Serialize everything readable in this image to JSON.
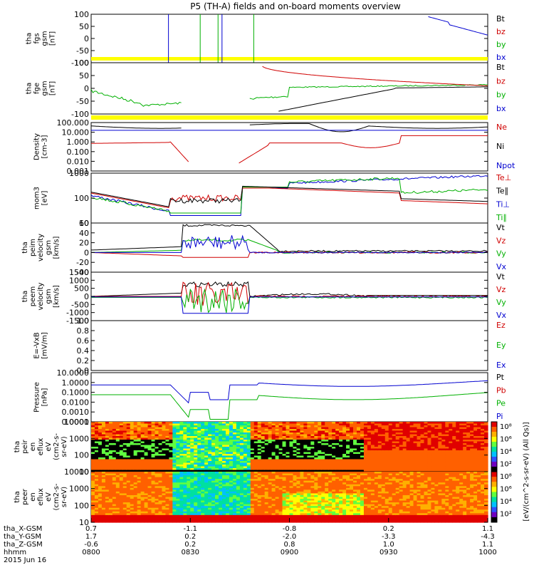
{
  "title": "P5 (TH-A) fields and on-board moments overview",
  "chart_data": [
    {
      "type": "line",
      "name": "tha_fgs_gsm",
      "ylabel": [
        "tha",
        "fgs",
        "gsm",
        "[nT]"
      ],
      "yticks": [
        "100",
        "50",
        "0",
        "-50",
        "-100"
      ],
      "ylim": [
        -100,
        100
      ],
      "legend": [
        {
          "label": "Bt",
          "color": "#000000"
        },
        {
          "label": "bz",
          "color": "#d00000"
        },
        {
          "label": "by",
          "color": "#00b000"
        },
        {
          "label": "bx",
          "color": "#0000d0"
        }
      ]
    },
    {
      "type": "line",
      "name": "tha_fge_gsm",
      "ylabel": [
        "tha",
        "fge",
        "gsm",
        "[nT]"
      ],
      "yticks": [
        "100",
        "50",
        "0",
        "-50",
        "-100"
      ],
      "ylim": [
        -120,
        100
      ],
      "legend": [
        {
          "label": "Bt",
          "color": "#000000"
        },
        {
          "label": "bz",
          "color": "#d00000"
        },
        {
          "label": "by",
          "color": "#00b000"
        },
        {
          "label": "bx",
          "color": "#0000d0"
        }
      ]
    },
    {
      "type": "line",
      "name": "density",
      "log": true,
      "ylabel": [
        "Density",
        "[cm-3]"
      ],
      "yticks": [
        "100.000",
        "10.000",
        "1.000",
        "0.100",
        "0.010",
        "0.001"
      ],
      "legend": [
        {
          "label": "Ne",
          "color": "#d00000"
        },
        {
          "label": "Ni",
          "color": "#000000"
        },
        {
          "label": "Npot",
          "color": "#0000d0"
        }
      ]
    },
    {
      "type": "line",
      "name": "temperature",
      "log": true,
      "ylabel": [
        "mom3",
        "[eV]"
      ],
      "yticks": [
        "1000",
        "100",
        "10"
      ],
      "legend": [
        {
          "label": "Te⊥",
          "color": "#d00000"
        },
        {
          "label": "Te∥",
          "color": "#000000"
        },
        {
          "label": "Ti⊥",
          "color": "#0000d0"
        },
        {
          "label": "Ti∥",
          "color": "#00b000"
        }
      ]
    },
    {
      "type": "line",
      "name": "tha_peim_velocity",
      "ylabel": [
        "tha",
        "peim",
        "velocity",
        "gsm",
        "[km/s]"
      ],
      "yticks": [
        "60",
        "40",
        "20",
        "0",
        "-20",
        "-40"
      ],
      "ylim": [
        -40,
        60
      ],
      "legend": [
        {
          "label": "Vt",
          "color": "#000000"
        },
        {
          "label": "Vz",
          "color": "#d00000"
        },
        {
          "label": "Vy",
          "color": "#00b000"
        },
        {
          "label": "Vx",
          "color": "#0000d0"
        }
      ]
    },
    {
      "type": "line",
      "name": "tha_peem_velocity",
      "ylabel": [
        "tha",
        "peem",
        "velocity",
        "gsm",
        "[km/s]"
      ],
      "yticks": [
        "1500",
        "1000",
        "500",
        "0",
        "-500",
        "-1000",
        "-1500"
      ],
      "ylim": [
        -1500,
        1500
      ],
      "legend": [
        {
          "label": "Vt",
          "color": "#000000"
        },
        {
          "label": "Vz",
          "color": "#d00000"
        },
        {
          "label": "Vy",
          "color": "#00b000"
        },
        {
          "label": "Vx",
          "color": "#0000d0"
        }
      ]
    },
    {
      "type": "line",
      "name": "e_field",
      "ylabel": [
        "E=-VxB",
        "[mV/m]"
      ],
      "yticks": [
        "1.0",
        "0.8",
        "0.6",
        "0.4",
        "0.2",
        "0.0"
      ],
      "ylim": [
        0,
        1
      ],
      "legend": [
        {
          "label": "Ez",
          "color": "#d00000"
        },
        {
          "label": "Ey",
          "color": "#00b000"
        },
        {
          "label": "Ex",
          "color": "#0000d0"
        }
      ]
    },
    {
      "type": "line",
      "name": "pressure",
      "log": true,
      "ylabel": [
        "Pressure",
        "[nPa]"
      ],
      "yticks": [
        "10.0000",
        "1.0000",
        "0.1000",
        "0.0100",
        "0.0010",
        "0.0001"
      ],
      "legend": [
        {
          "label": "Pt",
          "color": "#000000"
        },
        {
          "label": "Pb",
          "color": "#d00000"
        },
        {
          "label": "Pe",
          "color": "#00b000"
        },
        {
          "label": "Pi",
          "color": "#0000d0"
        }
      ]
    },
    {
      "type": "heatmap",
      "name": "tha_peir_en_eflux",
      "ylabel": [
        "tha",
        "peir",
        "en",
        "eflux",
        "eV",
        "(cm2-s-",
        "sr-eV)"
      ],
      "yticks": [
        "10000",
        "1000",
        "100",
        "10"
      ]
    },
    {
      "type": "heatmap",
      "name": "tha_peer_en_eflux",
      "ylabel": [
        "tha",
        "peer",
        "en",
        "eflux",
        "eV",
        "(cm2-s-",
        "sr-eV)"
      ],
      "yticks": [
        "10000",
        "1000",
        "100",
        "10"
      ]
    }
  ],
  "colorbar": {
    "label": "[eV/(cm^2-s-sr-eV) (All Qs)]",
    "ticks": [
      "10⁸",
      "10⁶",
      "10⁴",
      "10²",
      "10⁸",
      "10⁶",
      "10⁴",
      "10²"
    ]
  },
  "x_axis": {
    "ticks": [
      "0800",
      "0830",
      "0900",
      "0930",
      "1000"
    ],
    "rows": [
      {
        "label": "tha_X-GSM",
        "values": [
          "0.7",
          "-1.1",
          "-0.8",
          "0.2",
          "1.1"
        ]
      },
      {
        "label": "tha_Y-GSM",
        "values": [
          "1.7",
          "0.2",
          "-2.0",
          "-3.3",
          "-4.3"
        ]
      },
      {
        "label": "tha_Z-GSM",
        "values": [
          "-0.6",
          "0.2",
          "0.8",
          "1.0",
          "1.1"
        ]
      },
      {
        "label": "hhmm",
        "values": [
          "0800",
          "0830",
          "0900",
          "0930",
          "1000"
        ]
      }
    ],
    "date": "2015 Jun 16"
  }
}
